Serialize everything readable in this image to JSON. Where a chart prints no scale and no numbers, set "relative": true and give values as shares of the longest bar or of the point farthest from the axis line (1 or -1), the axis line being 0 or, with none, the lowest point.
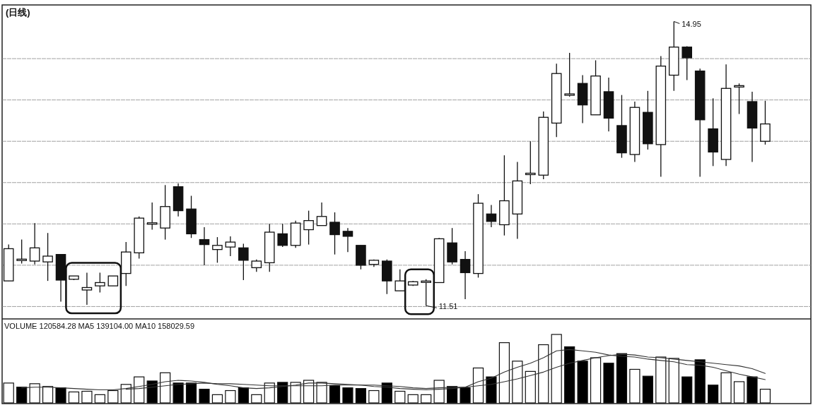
{
  "chart_data": [
    {
      "type": "candlestick",
      "title": "(日线)",
      "categories": [
        null,
        null,
        null,
        null,
        null,
        null,
        null,
        null,
        null,
        null,
        null,
        null,
        null,
        null,
        null,
        null,
        null,
        null,
        null,
        null,
        null,
        null,
        null,
        null,
        null,
        null,
        null,
        null,
        null,
        null,
        null,
        null,
        null,
        null,
        null,
        null,
        null,
        null,
        null,
        null,
        null,
        null,
        null,
        null,
        null,
        null,
        null,
        null,
        null,
        null,
        null,
        null,
        null,
        null,
        null,
        null,
        null,
        null,
        null
      ],
      "ohlc": [
        [
          11.81,
          12.25,
          11.81,
          12.2
        ],
        [
          12.06,
          12.31,
          12.02,
          12.07
        ],
        [
          12.05,
          12.51,
          12.01,
          12.21
        ],
        [
          12.04,
          12.39,
          11.81,
          12.11
        ],
        [
          12.13,
          12.13,
          11.56,
          11.82
        ],
        [
          11.83,
          11.87,
          11.82,
          11.87
        ],
        [
          11.7,
          11.91,
          11.52,
          11.73
        ],
        [
          11.75,
          11.91,
          11.67,
          11.79
        ],
        [
          11.75,
          11.87,
          11.75,
          11.87
        ],
        [
          11.9,
          12.28,
          11.75,
          12.16
        ],
        [
          12.15,
          12.59,
          12.08,
          12.57
        ],
        [
          12.5,
          12.76,
          12.43,
          12.51
        ],
        [
          12.45,
          12.97,
          12.31,
          12.71
        ],
        [
          12.95,
          12.99,
          12.59,
          12.66
        ],
        [
          12.68,
          12.84,
          12.33,
          12.38
        ],
        [
          12.31,
          12.46,
          12.0,
          12.25
        ],
        [
          12.19,
          12.34,
          12.03,
          12.24
        ],
        [
          12.22,
          12.35,
          12.11,
          12.28
        ],
        [
          12.21,
          12.26,
          11.82,
          12.06
        ],
        [
          11.97,
          12.07,
          11.92,
          12.05
        ],
        [
          12.03,
          12.5,
          11.92,
          12.4
        ],
        [
          12.38,
          12.5,
          12.22,
          12.24
        ],
        [
          12.24,
          12.54,
          12.21,
          12.51
        ],
        [
          12.43,
          12.66,
          12.25,
          12.54
        ],
        [
          12.48,
          12.76,
          12.48,
          12.59
        ],
        [
          12.52,
          12.64,
          12.13,
          12.37
        ],
        [
          12.41,
          12.45,
          12.16,
          12.35
        ],
        [
          12.24,
          12.24,
          11.95,
          12.0
        ],
        [
          12.01,
          12.07,
          11.98,
          12.06
        ],
        [
          12.05,
          12.07,
          11.65,
          11.81
        ],
        [
          11.69,
          11.95,
          11.69,
          11.81
        ],
        [
          11.76,
          11.81,
          11.75,
          11.8
        ],
        [
          11.8,
          11.83,
          11.51,
          11.8
        ],
        [
          11.79,
          12.33,
          11.79,
          12.32
        ],
        [
          12.27,
          12.45,
          12.01,
          12.04
        ],
        [
          12.07,
          12.17,
          11.59,
          11.91
        ],
        [
          11.9,
          12.86,
          11.85,
          12.75
        ],
        [
          12.62,
          12.73,
          12.46,
          12.53
        ],
        [
          12.49,
          13.33,
          12.36,
          12.78
        ],
        [
          12.62,
          13.25,
          12.32,
          13.02
        ],
        [
          13.1,
          13.5,
          12.98,
          13.11
        ],
        [
          13.09,
          13.86,
          13.04,
          13.79
        ],
        [
          13.72,
          14.44,
          13.55,
          14.32
        ],
        [
          14.06,
          14.57,
          14.04,
          14.07
        ],
        [
          14.2,
          14.3,
          13.72,
          13.94
        ],
        [
          13.82,
          14.48,
          13.82,
          14.29
        ],
        [
          14.1,
          14.27,
          13.62,
          13.78
        ],
        [
          13.69,
          14.06,
          13.3,
          13.36
        ],
        [
          13.34,
          13.98,
          13.25,
          13.91
        ],
        [
          13.85,
          14.11,
          13.4,
          13.47
        ],
        [
          13.46,
          14.53,
          13.07,
          14.41
        ],
        [
          14.3,
          14.95,
          14.11,
          14.64
        ],
        [
          14.64,
          14.65,
          14.24,
          14.51
        ],
        [
          14.35,
          14.38,
          13.07,
          13.76
        ],
        [
          13.65,
          14.02,
          13.2,
          13.37
        ],
        [
          13.28,
          14.43,
          13.2,
          14.14
        ],
        [
          14.16,
          14.2,
          13.83,
          14.17
        ],
        [
          13.98,
          14.1,
          13.25,
          13.66
        ],
        [
          13.5,
          13.99,
          13.46,
          13.71
        ]
      ],
      "ylim": [
        11.35,
        15.15
      ],
      "yticks": [
        {
          "value": 11.5,
          "label": null
        },
        {
          "value": 12,
          "label": null
        },
        {
          "value": 12.5,
          "label": null
        },
        {
          "value": 13,
          "label": null
        },
        {
          "value": 13.5,
          "label": null
        },
        {
          "value": 14,
          "label": null
        },
        {
          "value": 14.5,
          "label": null
        }
      ],
      "grid": "y",
      "annotations": [
        "14.95",
        "11.51"
      ]
    },
    {
      "type": "bar",
      "title": "VOLUME 120584.28 MA5 139104.00 MA10 158029.59",
      "relative": true,
      "categories": [
        null,
        null,
        null,
        null,
        null,
        null,
        null,
        null,
        null,
        null,
        null,
        null,
        null,
        null,
        null,
        null,
        null,
        null,
        null,
        null,
        null,
        null,
        null,
        null,
        null,
        null,
        null,
        null,
        null,
        null,
        null,
        null,
        null,
        null,
        null,
        null,
        null,
        null,
        null,
        null,
        null,
        null,
        null,
        null,
        null,
        null,
        null,
        null,
        null,
        null,
        null,
        null,
        null,
        null,
        null,
        null,
        null,
        null,
        null
      ],
      "series": [
        {
          "type": "bar",
          "values": [
            0.29,
            0.23,
            0.28,
            0.24,
            0.22,
            0.16,
            0.17,
            0.12,
            0.18,
            0.27,
            0.38,
            0.32,
            0.44,
            0.29,
            0.29,
            0.2,
            0.12,
            0.18,
            0.22,
            0.12,
            0.29,
            0.3,
            0.3,
            0.33,
            0.3,
            0.25,
            0.22,
            0.21,
            0.18,
            0.29,
            0.17,
            0.12,
            0.12,
            0.33,
            0.24,
            0.22,
            0.51,
            0.38,
            0.88,
            0.61,
            0.46,
            0.85,
            1,
            0.82,
            0.61,
            0.66,
            0.58,
            0.72,
            0.49,
            0.39,
            0.67,
            0.65,
            0.38,
            0.63,
            0.26,
            0.44,
            0.31,
            0.38,
            0.2
          ],
          "colors": [
            "#ffffff",
            "#000000",
            "#ffffff",
            "#ffffff",
            "#000000",
            "#ffffff",
            "#ffffff",
            "#ffffff",
            "#ffffff",
            "#ffffff",
            "#ffffff",
            "#000000",
            "#ffffff",
            "#000000",
            "#000000",
            "#000000",
            "#ffffff",
            "#ffffff",
            "#000000",
            "#ffffff",
            "#ffffff",
            "#000000",
            "#ffffff",
            "#ffffff",
            "#ffffff",
            "#000000",
            "#000000",
            "#000000",
            "#ffffff",
            "#000000",
            "#ffffff",
            "#ffffff",
            "#ffffff",
            "#ffffff",
            "#000000",
            "#000000",
            "#ffffff",
            "#000000",
            "#ffffff",
            "#ffffff",
            "#ffffff",
            "#ffffff",
            "#ffffff",
            "#000000",
            "#000000",
            "#ffffff",
            "#000000",
            "#000000",
            "#ffffff",
            "#000000",
            "#ffffff",
            "#ffffff",
            "#000000",
            "#000000",
            "#000000",
            "#ffffff",
            "#ffffff",
            "#000000",
            "#ffffff"
          ]
        },
        {
          "type": "line",
          "color": "#333333",
          "values": [
            null,
            0.22,
            0.23,
            0.23,
            0.22,
            0.21,
            0.2,
            0.19,
            0.19,
            0.21,
            0.24,
            0.27,
            0.31,
            0.33,
            0.32,
            0.3,
            0.27,
            0.25,
            0.22,
            0.21,
            0.22,
            0.24,
            0.26,
            0.29,
            0.29,
            0.28,
            0.27,
            0.26,
            0.24,
            0.23,
            0.21,
            0.2,
            0.19,
            0.2,
            0.21,
            0.23,
            0.31,
            0.36,
            0.45,
            0.52,
            0.58,
            0.66,
            0.76,
            0.78,
            0.76,
            0.74,
            0.7,
            0.68,
            0.67,
            0.64,
            0.62,
            0.6,
            0.56,
            0.55,
            0.52,
            0.47,
            0.42,
            0.38,
            0.34
          ]
        },
        {
          "type": "line",
          "color": "#333333",
          "values": [
            null,
            null,
            null,
            null,
            null,
            null,
            null,
            null,
            null,
            0.2,
            0.21,
            0.23,
            0.25,
            0.27,
            0.28,
            0.29,
            0.28,
            0.28,
            0.27,
            0.26,
            0.25,
            0.25,
            0.25,
            0.25,
            0.25,
            0.26,
            0.26,
            0.26,
            0.26,
            0.25,
            0.24,
            0.22,
            0.21,
            0.22,
            0.23,
            0.23,
            0.25,
            0.27,
            0.31,
            0.35,
            0.4,
            0.45,
            0.52,
            0.58,
            0.62,
            0.66,
            0.69,
            0.71,
            0.7,
            0.67,
            0.66,
            0.64,
            0.62,
            0.6,
            0.58,
            0.56,
            0.54,
            0.5,
            0.43
          ]
        }
      ]
    }
  ]
}
